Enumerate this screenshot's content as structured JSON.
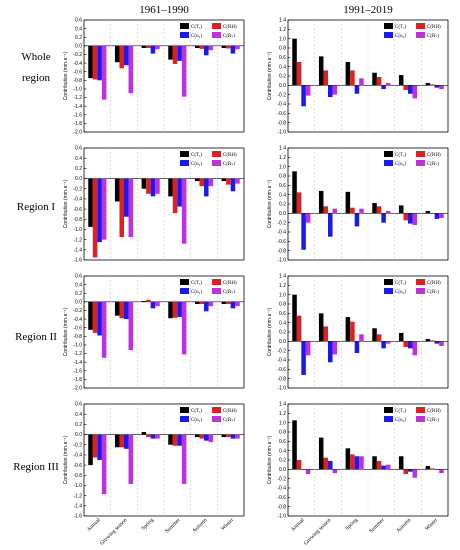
{
  "column_headers": [
    "1961–1990",
    "1991–2019"
  ],
  "row_labels": [
    [
      "Whole",
      "region"
    ],
    [
      "Region I"
    ],
    [
      "Region II"
    ],
    [
      "Region III"
    ]
  ],
  "colors": {
    "T": "#000000",
    "RH": "#e02020",
    "u2": "#1a1aee",
    "Rs": "#c030e0",
    "grid": "#cccccc"
  },
  "chart_data": [
    {
      "type": "bar",
      "region": "Whole region",
      "period": "1961–1990",
      "categories": [
        "Annual",
        "Growing season",
        "Spring",
        "Summer",
        "Autumn",
        "Winter"
      ],
      "ylabel": "Contribution (mm·a⁻¹)",
      "ylim": [
        -2.0,
        0.6
      ],
      "ytick_step": 0.2,
      "series": [
        {
          "name": "C(Tₐ)",
          "values": [
            -0.75,
            -0.38,
            -0.05,
            -0.32,
            -0.05,
            -0.05
          ]
        },
        {
          "name": "C(RH)",
          "values": [
            -0.78,
            -0.52,
            -0.05,
            -0.42,
            -0.07,
            -0.06
          ]
        },
        {
          "name": "C(u₂)",
          "values": [
            -0.8,
            -0.45,
            -0.18,
            -0.35,
            -0.22,
            -0.18
          ]
        },
        {
          "name": "C(Rₛ)",
          "values": [
            -1.25,
            -1.1,
            -0.08,
            -1.18,
            -0.1,
            -0.08
          ]
        }
      ]
    },
    {
      "type": "bar",
      "region": "Whole region",
      "period": "1991–2019",
      "categories": [
        "Annual",
        "Growing season",
        "Spring",
        "Summer",
        "Autumn",
        "Winter"
      ],
      "ylabel": "Contribution (mm·a⁻¹)",
      "ylim": [
        -1.0,
        1.4
      ],
      "ytick_step": 0.2,
      "series": [
        {
          "name": "C(Tₐ)",
          "values": [
            1.0,
            0.62,
            0.5,
            0.27,
            0.22,
            0.05
          ]
        },
        {
          "name": "C(RH)",
          "values": [
            0.5,
            0.32,
            0.32,
            0.18,
            -0.1,
            0.02
          ]
        },
        {
          "name": "C(u₂)",
          "values": [
            -0.45,
            -0.25,
            -0.18,
            -0.08,
            -0.18,
            -0.05
          ]
        },
        {
          "name": "C(Rₛ)",
          "values": [
            -0.22,
            -0.2,
            0.15,
            0.05,
            -0.28,
            -0.08
          ]
        }
      ]
    },
    {
      "type": "bar",
      "region": "Region I",
      "period": "1961–1990",
      "categories": [
        "Annual",
        "Growing season",
        "Spring",
        "Summer",
        "Autumn",
        "Winter"
      ],
      "ylabel": "Contribution (mm·a⁻¹)",
      "ylim": [
        -1.6,
        0.6
      ],
      "ytick_step": 0.2,
      "series": [
        {
          "name": "C(Tₐ)",
          "values": [
            -0.95,
            -0.45,
            -0.2,
            -0.35,
            -0.05,
            -0.05
          ]
        },
        {
          "name": "C(RH)",
          "values": [
            -1.55,
            -1.15,
            -0.3,
            -0.68,
            -0.15,
            -0.12
          ]
        },
        {
          "name": "C(u₂)",
          "values": [
            -1.25,
            -0.75,
            -0.35,
            -0.55,
            -0.35,
            -0.25
          ]
        },
        {
          "name": "C(Rₛ)",
          "values": [
            -1.2,
            -1.15,
            -0.3,
            -1.28,
            -0.15,
            -0.1
          ]
        }
      ]
    },
    {
      "type": "bar",
      "region": "Region I",
      "period": "1991–2019",
      "categories": [
        "Annual",
        "Growing season",
        "Spring",
        "Summer",
        "Autumn",
        "Winter"
      ],
      "ylabel": "Contribution (mm·a⁻¹)",
      "ylim": [
        -1.0,
        1.4
      ],
      "ytick_step": 0.2,
      "series": [
        {
          "name": "C(Tₐ)",
          "values": [
            0.9,
            0.48,
            0.46,
            0.22,
            0.17,
            0.05
          ]
        },
        {
          "name": "C(RH)",
          "values": [
            0.45,
            0.15,
            0.12,
            0.15,
            -0.15,
            0.0
          ]
        },
        {
          "name": "C(u₂)",
          "values": [
            -0.78,
            -0.5,
            -0.28,
            -0.2,
            -0.22,
            -0.12
          ]
        },
        {
          "name": "C(Rₛ)",
          "values": [
            -0.2,
            0.1,
            0.1,
            0.05,
            -0.25,
            -0.1
          ]
        }
      ]
    },
    {
      "type": "bar",
      "region": "Region II",
      "period": "1961–1990",
      "categories": [
        "Annual",
        "Growing season",
        "Spring",
        "Summer",
        "Autumn",
        "Winter"
      ],
      "ylabel": "Contribution (mm·a⁻¹)",
      "ylim": [
        -2.0,
        0.6
      ],
      "ytick_step": 0.2,
      "series": [
        {
          "name": "C(Tₐ)",
          "values": [
            -0.65,
            -0.32,
            0.02,
            -0.38,
            -0.05,
            -0.05
          ]
        },
        {
          "name": "C(RH)",
          "values": [
            -0.72,
            -0.38,
            0.05,
            -0.37,
            -0.05,
            -0.05
          ]
        },
        {
          "name": "C(u₂)",
          "values": [
            -0.78,
            -0.4,
            -0.15,
            -0.35,
            -0.22,
            -0.15
          ]
        },
        {
          "name": "C(Rₛ)",
          "values": [
            -1.3,
            -1.12,
            -0.1,
            -1.22,
            -0.1,
            -0.1
          ]
        }
      ]
    },
    {
      "type": "bar",
      "region": "Region II",
      "period": "1991–2019",
      "categories": [
        "Annual",
        "Growing season",
        "Spring",
        "Summer",
        "Autumn",
        "Winter"
      ],
      "ylabel": "Contribution (mm·a⁻¹)",
      "ylim": [
        -1.0,
        1.4
      ],
      "ytick_step": 0.2,
      "series": [
        {
          "name": "C(Tₐ)",
          "values": [
            1.0,
            0.6,
            0.52,
            0.28,
            0.18,
            0.05
          ]
        },
        {
          "name": "C(RH)",
          "values": [
            0.55,
            0.32,
            0.42,
            0.15,
            -0.12,
            0.02
          ]
        },
        {
          "name": "C(u₂)",
          "values": [
            -0.72,
            -0.45,
            -0.25,
            -0.15,
            -0.15,
            -0.05
          ]
        },
        {
          "name": "C(Rₛ)",
          "values": [
            -0.3,
            -0.28,
            0.15,
            -0.05,
            -0.3,
            -0.1
          ]
        }
      ]
    },
    {
      "type": "bar",
      "region": "Region III",
      "period": "1961–1990",
      "categories": [
        "Annual",
        "Growing season",
        "Spring",
        "Summer",
        "Autumn",
        "Winter"
      ],
      "ylabel": "Contribution (mm·a⁻¹)",
      "ylim": [
        -1.6,
        0.6
      ],
      "ytick_step": 0.2,
      "series": [
        {
          "name": "C(Tₐ)",
          "values": [
            -0.6,
            -0.25,
            0.05,
            -0.2,
            -0.05,
            -0.05
          ]
        },
        {
          "name": "C(RH)",
          "values": [
            -0.45,
            -0.25,
            -0.05,
            -0.22,
            -0.08,
            -0.05
          ]
        },
        {
          "name": "C(u₂)",
          "values": [
            -0.5,
            -0.28,
            -0.08,
            -0.22,
            -0.12,
            -0.08
          ]
        },
        {
          "name": "C(Rₛ)",
          "values": [
            -1.17,
            -0.97,
            -0.08,
            -0.97,
            -0.15,
            -0.08
          ]
        }
      ]
    },
    {
      "type": "bar",
      "region": "Region III",
      "period": "1991–2019",
      "categories": [
        "Annual",
        "Growing season",
        "Spring",
        "Summer",
        "Autumn",
        "Winter"
      ],
      "ylabel": "Contribution (mm·a⁻¹)",
      "ylim": [
        -1.0,
        1.4
      ],
      "ytick_step": 0.2,
      "series": [
        {
          "name": "C(Tₐ)",
          "values": [
            1.05,
            0.68,
            0.45,
            0.28,
            0.28,
            0.07
          ]
        },
        {
          "name": "C(RH)",
          "values": [
            0.2,
            0.25,
            0.32,
            0.18,
            -0.1,
            0.02
          ]
        },
        {
          "name": "C(u₂)",
          "values": [
            0.0,
            0.18,
            0.28,
            0.08,
            -0.05,
            0.0
          ]
        },
        {
          "name": "C(Rₛ)",
          "values": [
            -0.1,
            -0.08,
            0.28,
            0.1,
            -0.18,
            -0.08
          ]
        }
      ]
    }
  ]
}
